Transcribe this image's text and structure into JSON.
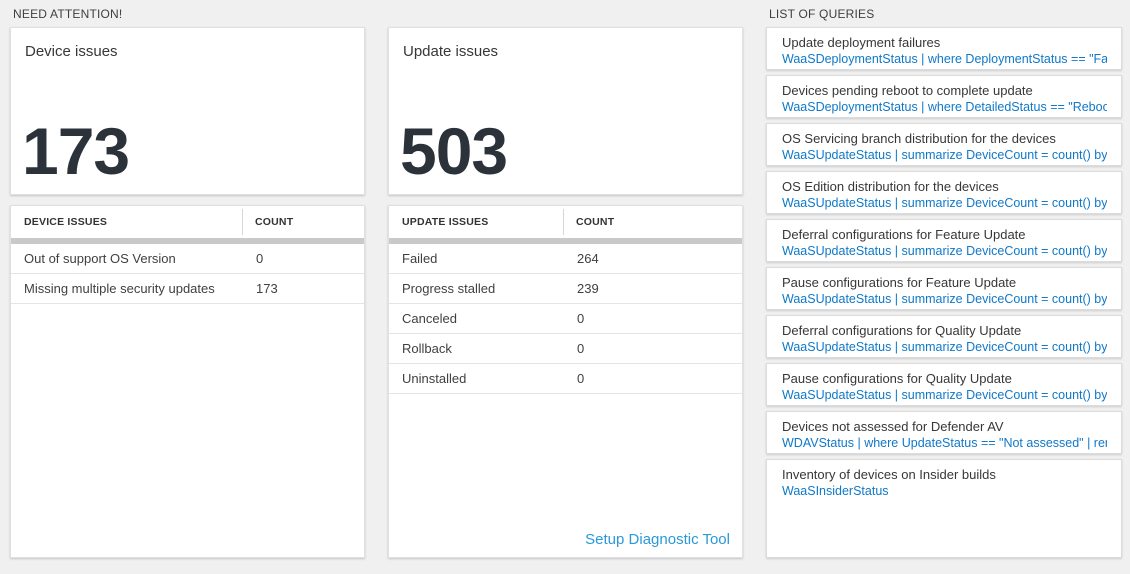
{
  "colors": {
    "query_blue": "#0f78c8",
    "link_blue": "#2b99d8",
    "big_number": "#2b3239",
    "page_bg": "#f0f0f0",
    "scrollbar_gray": "#c9c9c9"
  },
  "need_attention": {
    "header": "NEED ATTENTION!",
    "device": {
      "title": "Device issues",
      "total": "173",
      "table": {
        "col_issue": "DEVICE ISSUES",
        "col_count": "COUNT",
        "rows": [
          {
            "label": "Out of support OS Version",
            "count": "0"
          },
          {
            "label": "Missing multiple security updates",
            "count": "173"
          }
        ]
      }
    },
    "update": {
      "title": "Update issues",
      "total": "503",
      "table": {
        "col_issue": "UPDATE ISSUES",
        "col_count": "COUNT",
        "rows": [
          {
            "label": "Failed",
            "count": "264"
          },
          {
            "label": "Progress stalled",
            "count": "239"
          },
          {
            "label": "Canceled",
            "count": "0"
          },
          {
            "label": "Rollback",
            "count": "0"
          },
          {
            "label": "Uninstalled",
            "count": "0"
          }
        ]
      },
      "setup_link": "Setup Diagnostic Tool"
    }
  },
  "queries": {
    "header": "LIST OF QUERIES",
    "items": [
      {
        "title": "Update deployment failures",
        "query": "WaaSDeploymentStatus | where DeploymentStatus == \"Failed\" |..."
      },
      {
        "title": "Devices pending reboot to complete update",
        "query": "WaaSDeploymentStatus | where DetailedStatus == \"Reboot pend..."
      },
      {
        "title": "OS Servicing branch distribution for the devices",
        "query": "WaaSUpdateStatus | summarize DeviceCount = count() by OSSer..."
      },
      {
        "title": "OS Edition distribution for the devices",
        "query": "WaaSUpdateStatus | summarize DeviceCount = count() by OSEdit..."
      },
      {
        "title": "Deferral configurations for Feature Update",
        "query": "WaaSUpdateStatus | summarize DeviceCount = count() by Featur..."
      },
      {
        "title": "Pause configurations for Feature Update",
        "query": "WaaSUpdateStatus | summarize DeviceCount = count() by Featur..."
      },
      {
        "title": "Deferral configurations for Quality Update",
        "query": "WaaSUpdateStatus | summarize DeviceCount = count() by Qualit..."
      },
      {
        "title": "Pause configurations for Quality Update",
        "query": "WaaSUpdateStatus | summarize DeviceCount = count() by Qualit..."
      },
      {
        "title": "Devices not assessed for Defender AV",
        "query": "WDAVStatus | where UpdateStatus == \"Not assessed\" | render ta..."
      },
      {
        "title": "Inventory of devices on Insider builds",
        "query": "WaaSInsiderStatus"
      }
    ]
  }
}
